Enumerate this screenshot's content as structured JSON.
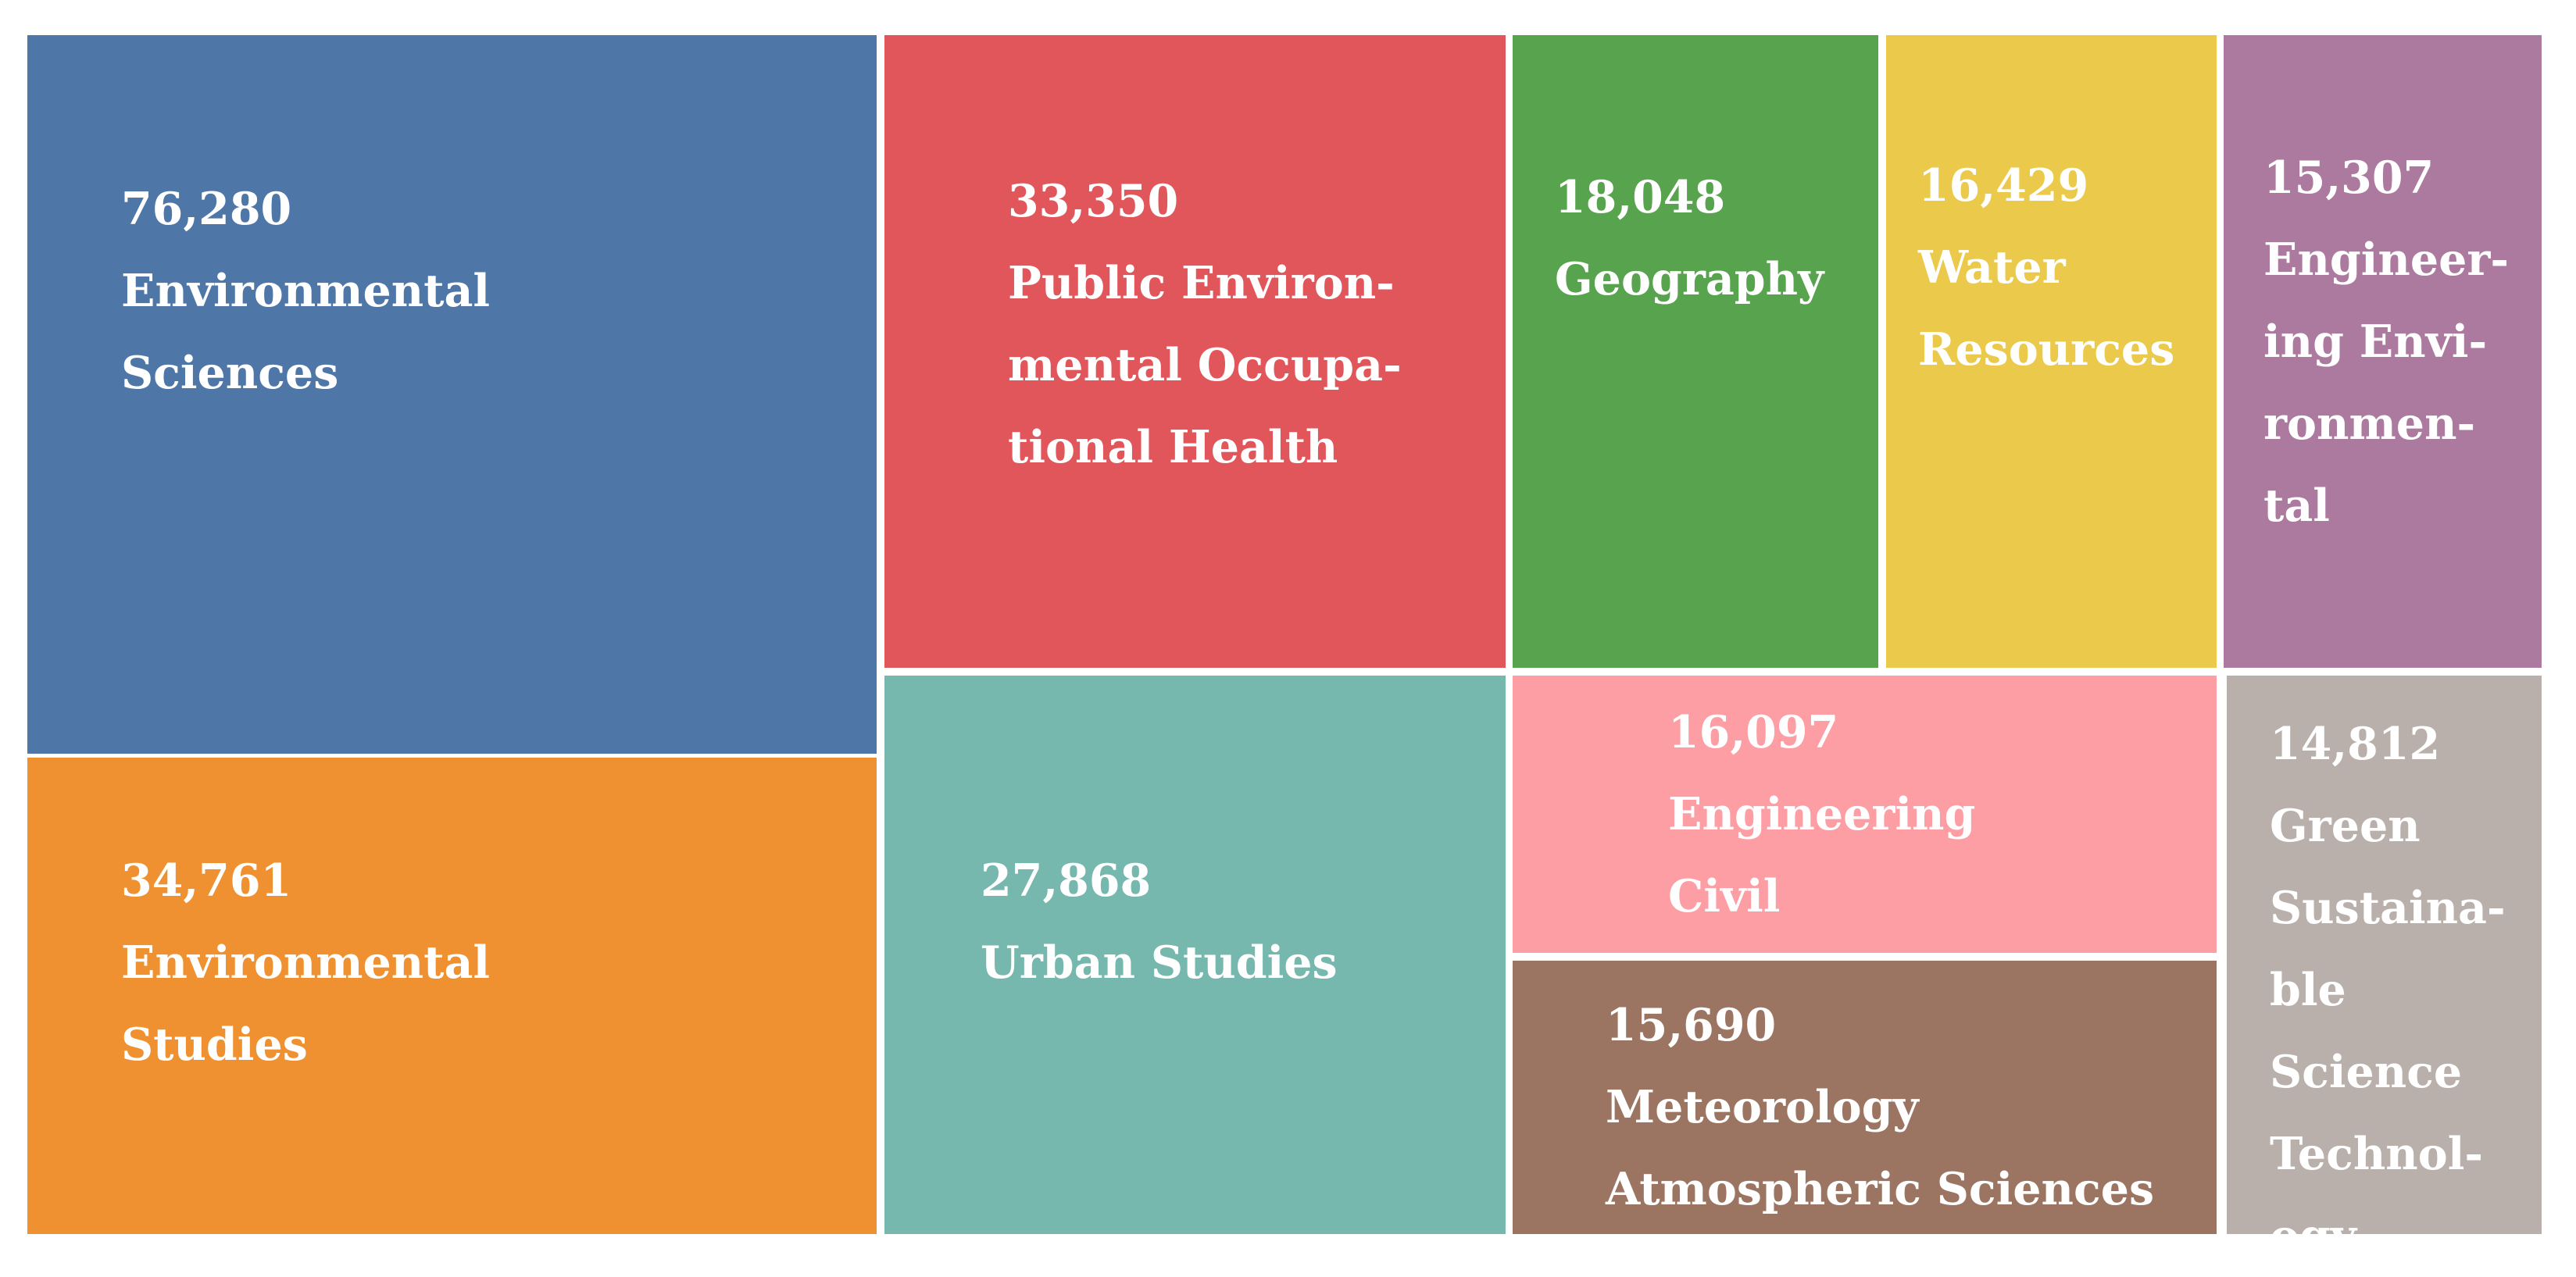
{
  "chart_data": {
    "type": "treemap",
    "title": "",
    "items": [
      {
        "label": "Environmental\nSciences",
        "value": 76280,
        "value_text": "76,280",
        "color": "#4e77a8"
      },
      {
        "label": "Environmental\nStudies",
        "value": 34761,
        "value_text": "34,761",
        "color": "#f09131"
      },
      {
        "label": "Public Environ-\nmental Occupa-\ntional Health",
        "value": 33350,
        "value_text": "33,350",
        "color": "#e0565b"
      },
      {
        "label": "Urban Studies",
        "value": 27868,
        "value_text": "27,868",
        "color": "#76b7ae"
      },
      {
        "label": "Geography",
        "value": 18048,
        "value_text": "18,048",
        "color": "#58a34e"
      },
      {
        "label": "Water\nResources",
        "value": 16429,
        "value_text": "16,429",
        "color": "#ebc94a"
      },
      {
        "label": "Engineering\nCivil",
        "value": 16097,
        "value_text": "16,097",
        "color": "#fc9ea4"
      },
      {
        "label": "Meteorology\nAtmospheric Sciences",
        "value": 15690,
        "value_text": "15,690",
        "color": "#9b7561"
      },
      {
        "label": "Engineer-\ning Envi-\nronmen-\ntal",
        "value": 15307,
        "value_text": "15,307",
        "color": "#ac799f"
      },
      {
        "label": "Green\nSustaina-\nble\nScience\nTechnol-\nogy",
        "value": 14812,
        "value_text": "14,812",
        "color": "#b9b0ab"
      }
    ]
  }
}
